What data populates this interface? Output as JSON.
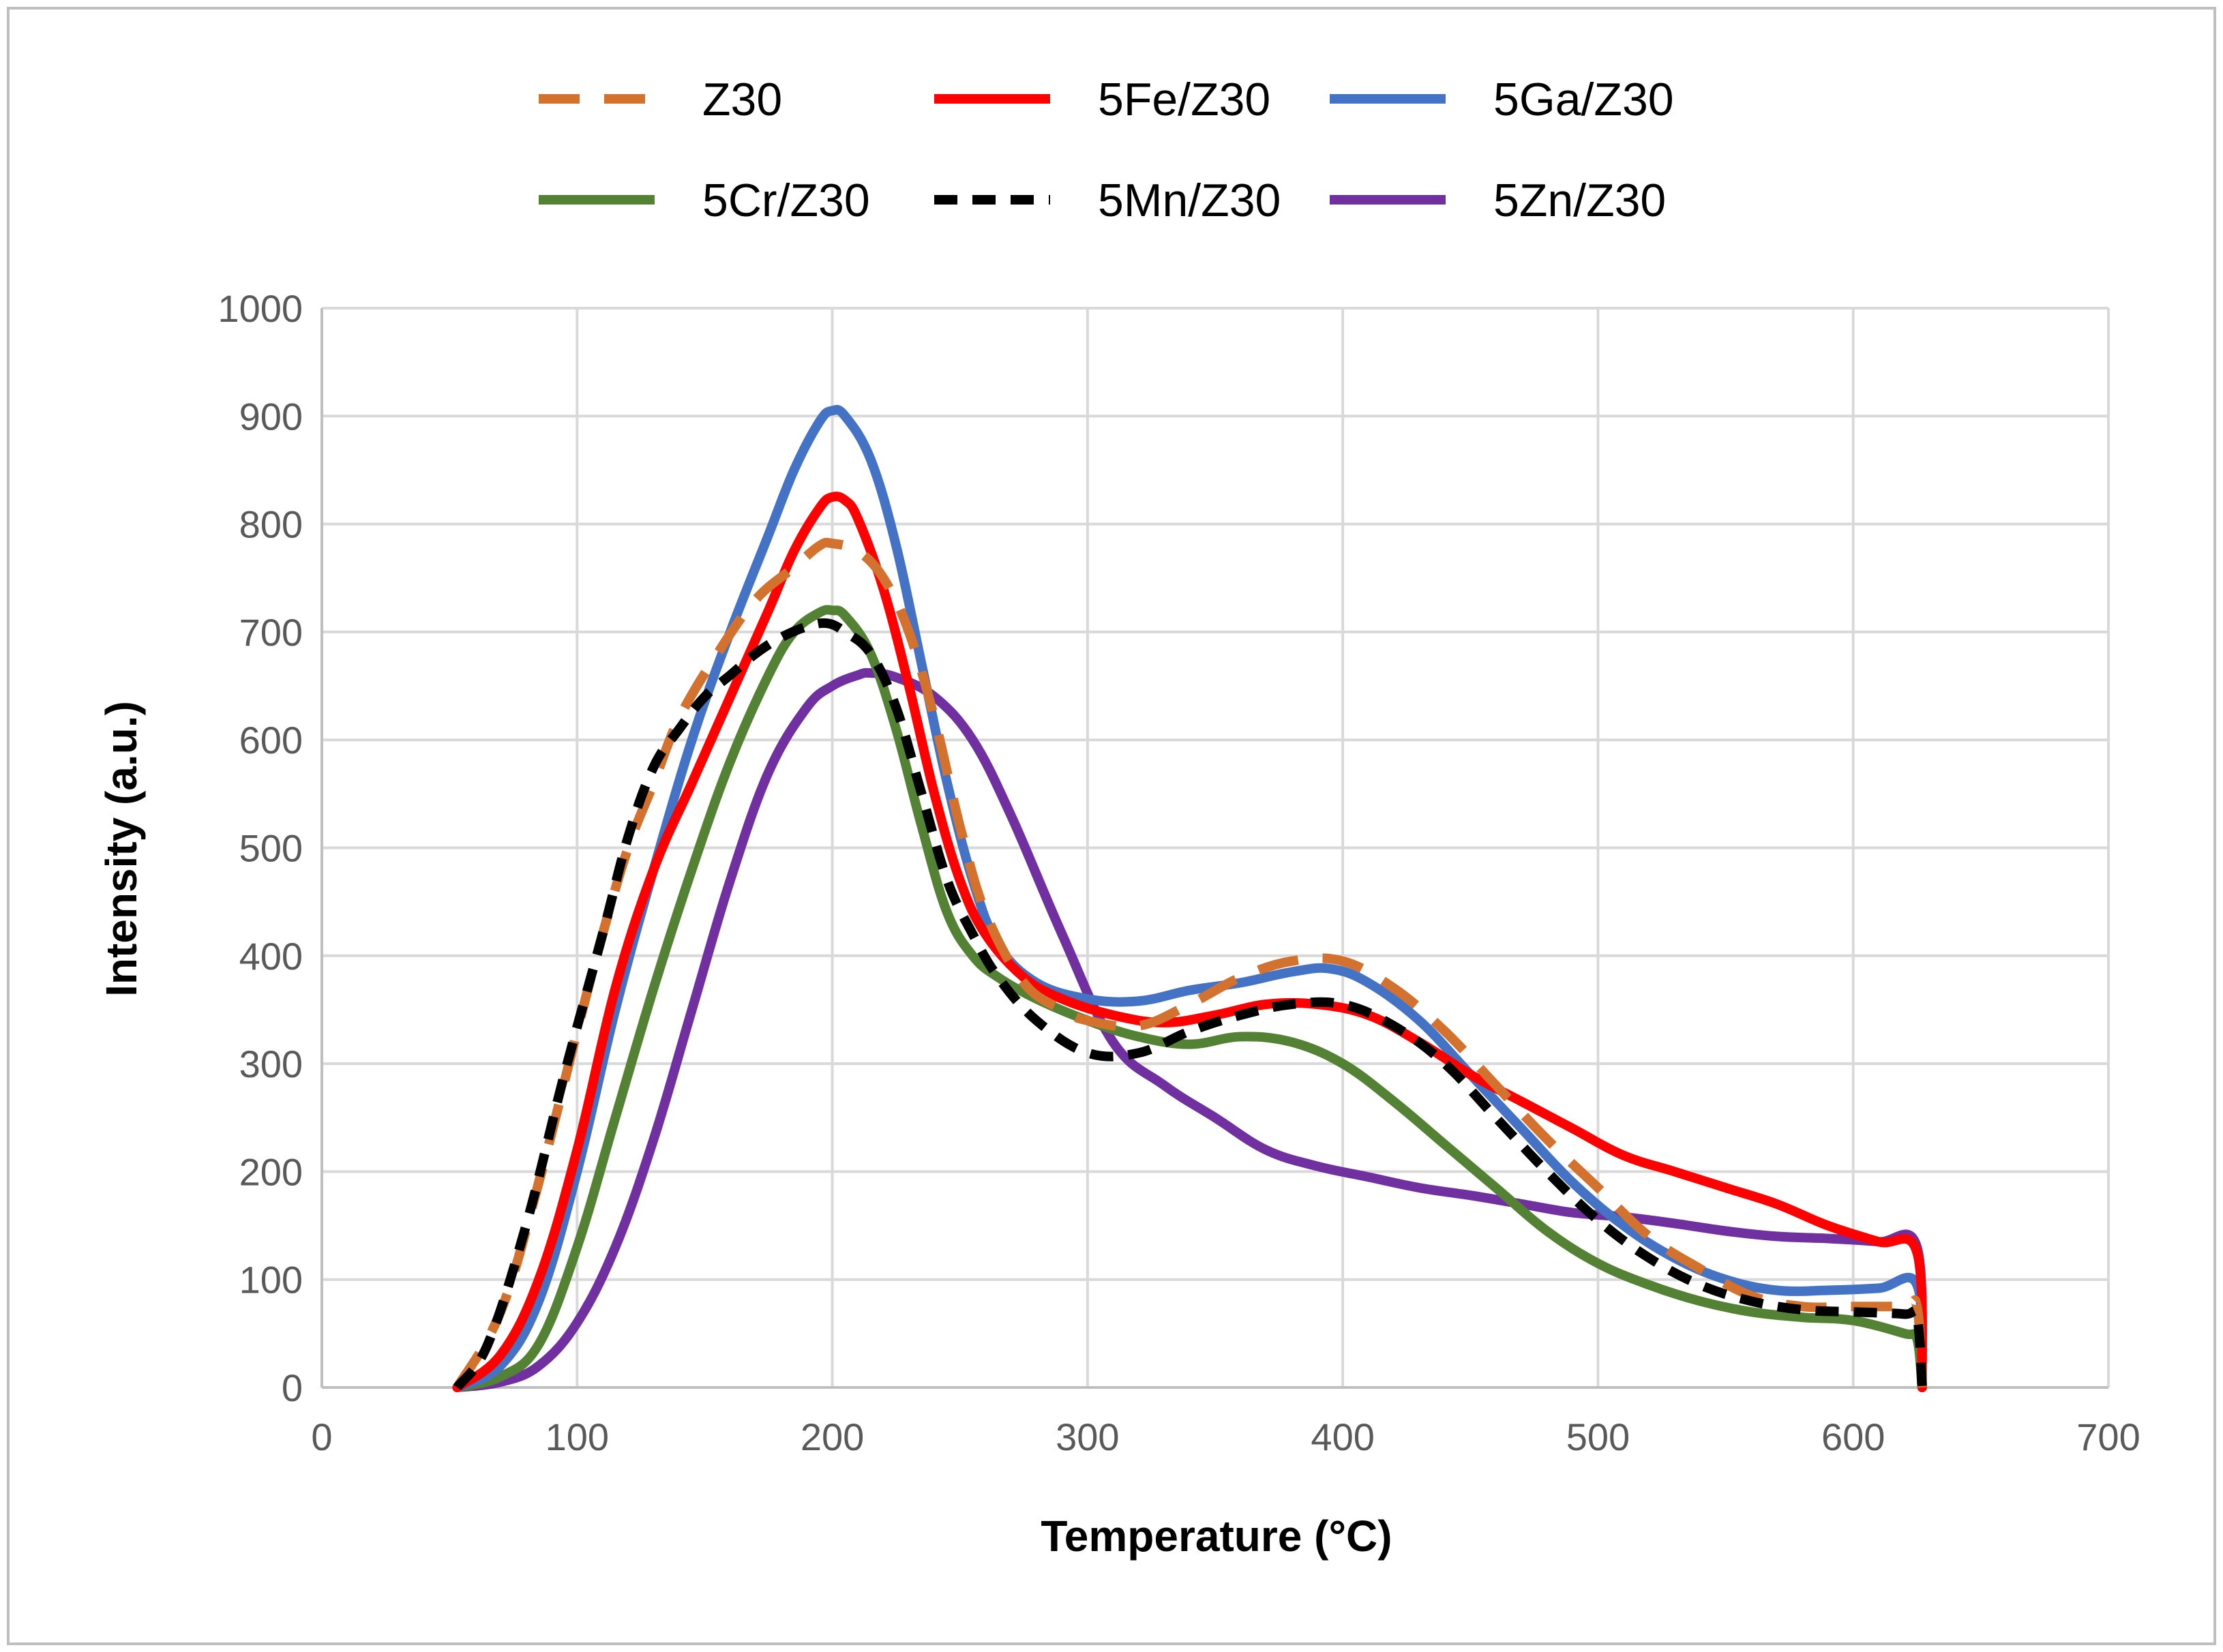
{
  "chart_data": {
    "type": "line",
    "title": "",
    "xlabel": "Temperature (°C)",
    "ylabel": "Intensity (a.u.)",
    "xlim": [
      0,
      700
    ],
    "ylim": [
      0,
      1000
    ],
    "x_ticks": [
      "0",
      "100",
      "200",
      "300",
      "400",
      "500",
      "600",
      "700"
    ],
    "y_ticks": [
      "0",
      "100",
      "200",
      "300",
      "400",
      "500",
      "600",
      "700",
      "800",
      "900",
      "1000"
    ],
    "grid": true,
    "legend_position": "top",
    "series": [
      {
        "name": "Z30",
        "color": "#D2722E",
        "dash": "dash",
        "x": [
          53,
          70,
          85,
          100,
          110,
          120,
          130,
          140,
          155,
          170,
          185,
          195,
          200,
          210,
          220,
          230,
          240,
          250,
          260,
          275,
          290,
          300,
          320,
          340,
          360,
          380,
          400,
          420,
          440,
          460,
          480,
          500,
          520,
          540,
          560,
          580,
          600,
          620,
          625,
          627
        ],
        "y": [
          0,
          70,
          190,
          330,
          420,
          500,
          560,
          620,
          680,
          730,
          760,
          780,
          782,
          775,
          750,
          700,
          620,
          520,
          440,
          375,
          350,
          340,
          335,
          355,
          380,
          395,
          395,
          370,
          330,
          280,
          230,
          185,
          140,
          110,
          85,
          75,
          75,
          75,
          75,
          0
        ]
      },
      {
        "name": "5Fe/Z30",
        "color": "#FF0000",
        "dash": "solid",
        "x": [
          53,
          70,
          85,
          100,
          115,
          130,
          145,
          160,
          175,
          185,
          195,
          200,
          205,
          210,
          220,
          230,
          240,
          250,
          260,
          275,
          290,
          310,
          330,
          350,
          370,
          390,
          410,
          430,
          450,
          470,
          490,
          510,
          530,
          550,
          570,
          590,
          610,
          625,
          627
        ],
        "y": [
          0,
          30,
          100,
          220,
          370,
          480,
          560,
          640,
          720,
          775,
          815,
          825,
          822,
          805,
          740,
          650,
          550,
          470,
          420,
          380,
          360,
          345,
          338,
          345,
          355,
          355,
          345,
          320,
          290,
          265,
          240,
          215,
          200,
          185,
          170,
          150,
          135,
          125,
          0
        ]
      },
      {
        "name": "5Ga/Z30",
        "color": "#4472C4",
        "dash": "solid",
        "x": [
          53,
          70,
          85,
          100,
          115,
          130,
          145,
          160,
          175,
          185,
          195,
          200,
          205,
          215,
          225,
          235,
          245,
          255,
          265,
          280,
          300,
          320,
          340,
          360,
          380,
          395,
          410,
          430,
          450,
          470,
          490,
          510,
          530,
          550,
          570,
          590,
          610,
          625,
          627
        ],
        "y": [
          0,
          20,
          80,
          200,
          350,
          480,
          600,
          700,
          790,
          850,
          895,
          905,
          900,
          860,
          780,
          670,
          560,
          470,
          410,
          375,
          360,
          358,
          368,
          375,
          385,
          388,
          375,
          340,
          290,
          240,
          190,
          150,
          120,
          100,
          90,
          90,
          92,
          95,
          0
        ]
      },
      {
        "name": "5Cr/Z30",
        "color": "#548235",
        "dash": "solid",
        "x": [
          53,
          70,
          85,
          100,
          115,
          130,
          145,
          160,
          175,
          185,
          195,
          200,
          205,
          215,
          225,
          235,
          245,
          255,
          265,
          280,
          300,
          320,
          340,
          360,
          380,
          400,
          420,
          440,
          460,
          480,
          500,
          520,
          540,
          560,
          580,
          600,
          620,
          625,
          627
        ],
        "y": [
          0,
          10,
          40,
          130,
          250,
          370,
          480,
          580,
          660,
          700,
          718,
          720,
          715,
          680,
          610,
          520,
          440,
          400,
          380,
          360,
          340,
          325,
          318,
          325,
          320,
          300,
          265,
          225,
          185,
          145,
          115,
          95,
          80,
          70,
          65,
          62,
          50,
          45,
          0
        ]
      },
      {
        "name": "5Mn/Z30",
        "color": "#000000",
        "dash": "dash",
        "x": [
          53,
          65,
          80,
          95,
          110,
          120,
          130,
          140,
          150,
          160,
          170,
          180,
          190,
          198,
          205,
          215,
          225,
          235,
          245,
          255,
          265,
          280,
          300,
          320,
          340,
          360,
          380,
          400,
          420,
          440,
          460,
          480,
          500,
          520,
          540,
          560,
          580,
          600,
          620,
          625,
          627
        ],
        "y": [
          0,
          40,
          150,
          290,
          420,
          510,
          575,
          610,
          640,
          660,
          680,
          695,
          705,
          708,
          700,
          680,
          630,
          550,
          470,
          420,
          380,
          340,
          310,
          310,
          330,
          345,
          355,
          355,
          335,
          300,
          250,
          200,
          155,
          120,
          95,
          80,
          72,
          70,
          68,
          65,
          0
        ]
      },
      {
        "name": "5Zn/Z30",
        "color": "#7030A0",
        "dash": "solid",
        "x": [
          53,
          70,
          85,
          100,
          115,
          130,
          145,
          160,
          175,
          190,
          200,
          210,
          215,
          225,
          240,
          255,
          270,
          290,
          310,
          330,
          350,
          370,
          390,
          410,
          430,
          450,
          470,
          490,
          510,
          530,
          550,
          570,
          590,
          610,
          625,
          627
        ],
        "y": [
          0,
          5,
          20,
          60,
          130,
          230,
          350,
          470,
          570,
          630,
          650,
          660,
          662,
          658,
          640,
          600,
          530,
          420,
          320,
          280,
          250,
          220,
          205,
          195,
          185,
          178,
          170,
          162,
          158,
          152,
          145,
          140,
          138,
          135,
          130,
          0
        ]
      }
    ]
  }
}
